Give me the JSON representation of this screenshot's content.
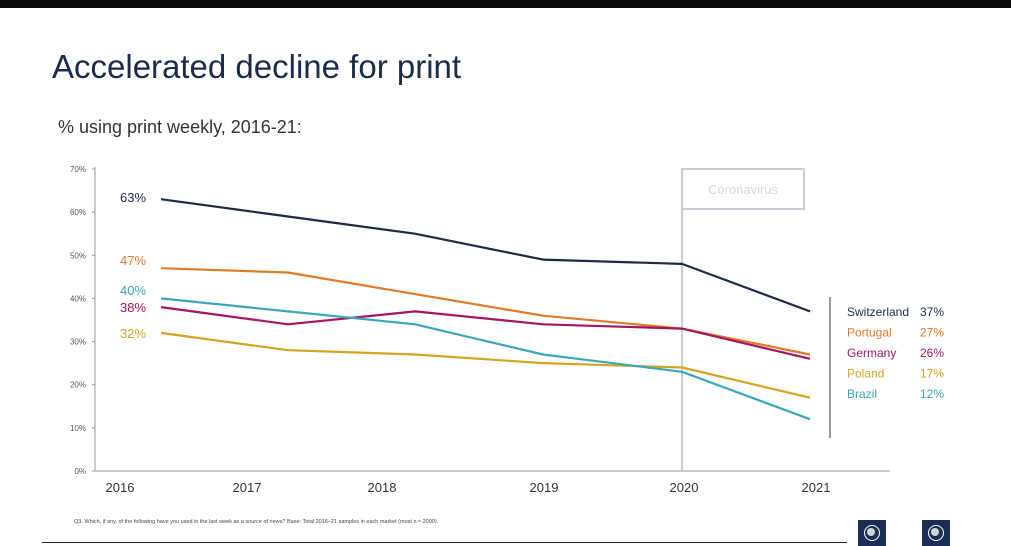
{
  "title": "Accelerated decline for print",
  "subtitle": "% using print weekly, 2016-21:",
  "footnote": "Q3. Which, if any, of the following have you used in the last week as a source of news? Base: Total 2016–21 samples in each market (most n ≈ 2000).",
  "colors": {
    "switzerland": "#1c2b4a",
    "portugal": "#e07b2a",
    "germany": "#a3175f",
    "poland": "#d4a520",
    "brazil": "#3aa6be",
    "axis": "#6b6b6b",
    "annotation": "#c8cdd6",
    "logo": "#1d2d55"
  },
  "chart_data": {
    "type": "line",
    "x": [
      2016,
      2017,
      2018,
      2019,
      2020,
      2021
    ],
    "ylim": [
      0,
      70
    ],
    "yticks": [
      "0%",
      "10%",
      "20%",
      "30%",
      "40%",
      "50%",
      "60%",
      "70%"
    ],
    "xticks": [
      "2016",
      "2017",
      "2018",
      "2019",
      "2020",
      "2021"
    ],
    "grid": false,
    "legend_position": "right",
    "annotation": "Coronavirus",
    "series": [
      {
        "name": "Switzerland",
        "key": "switzerland",
        "values": [
          63,
          59,
          55,
          49,
          48,
          37
        ],
        "start_label": "63%",
        "end_label": "37%"
      },
      {
        "name": "Portugal",
        "key": "portugal",
        "values": [
          47,
          46,
          41,
          36,
          33,
          27
        ],
        "start_label": "47%",
        "end_label": "27%"
      },
      {
        "name": "Germany",
        "key": "germany",
        "values": [
          38,
          34,
          37,
          34,
          33,
          26
        ],
        "start_label": "38%",
        "end_label": "26%"
      },
      {
        "name": "Poland",
        "key": "poland",
        "values": [
          32,
          28,
          27,
          25,
          24,
          17
        ],
        "start_label": "32%",
        "end_label": "17%"
      },
      {
        "name": "Brazil",
        "key": "brazil",
        "values": [
          40,
          37,
          34,
          27,
          23,
          12
        ],
        "start_label": "40%",
        "end_label": "12%"
      }
    ]
  }
}
